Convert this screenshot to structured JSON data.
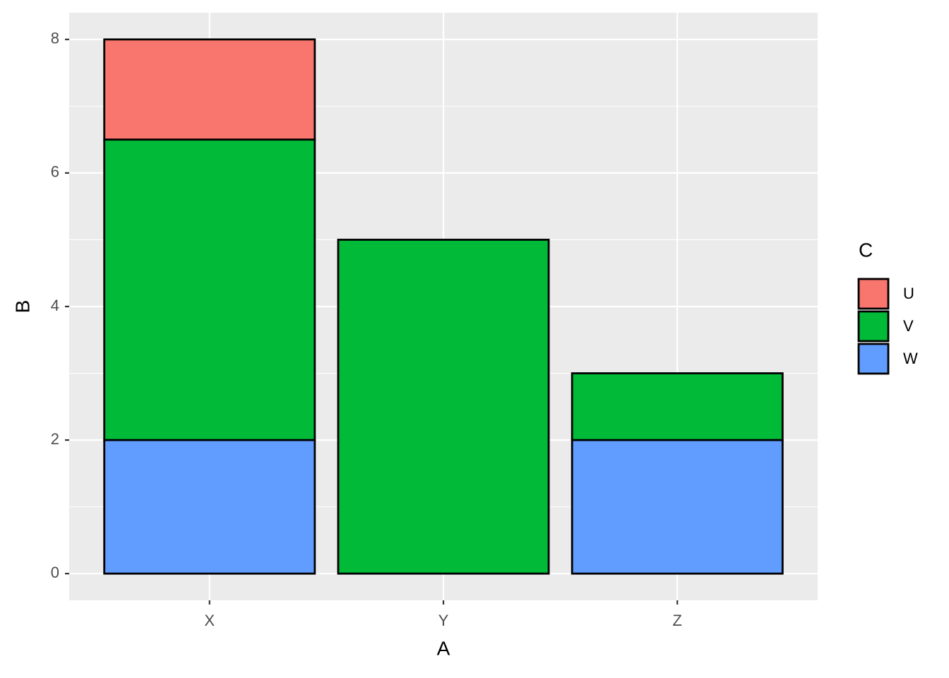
{
  "chart_data": {
    "type": "stacked_bar",
    "x_label": "A",
    "y_label": "B",
    "legend_title": "C",
    "categories": [
      "X",
      "Y",
      "Z"
    ],
    "series": [
      {
        "name": "U",
        "color": "#f8766d",
        "values": [
          1.5,
          null,
          null
        ]
      },
      {
        "name": "V",
        "color": "#00ba38",
        "values": [
          4.5,
          5,
          1
        ]
      },
      {
        "name": "W",
        "color": "#619cff",
        "values": [
          2,
          null,
          2
        ]
      }
    ],
    "ylim": [
      -0.4,
      8.4
    ],
    "yticks": [
      0,
      2,
      4,
      6,
      8
    ],
    "grid": true,
    "legend": "right"
  }
}
